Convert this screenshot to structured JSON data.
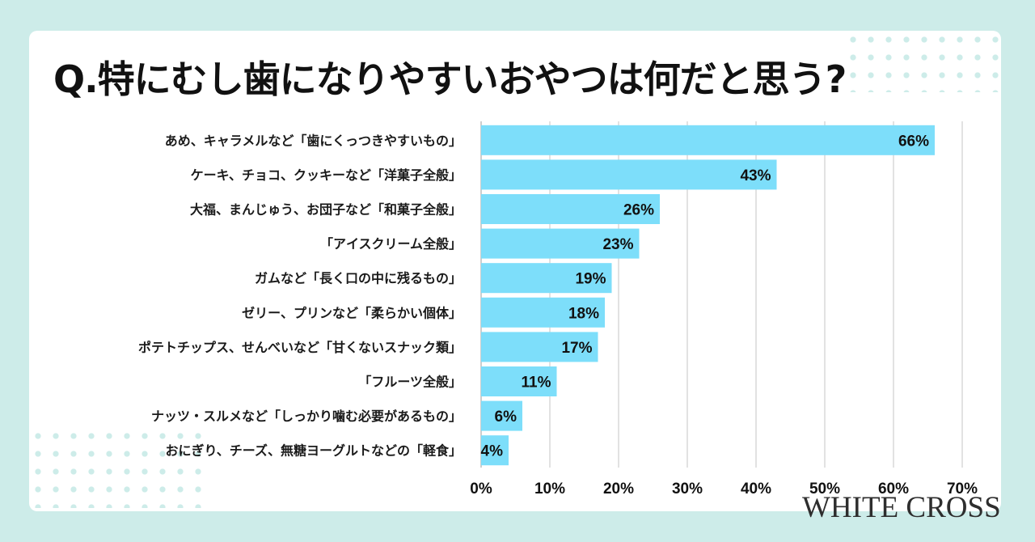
{
  "title": "Q.特にむし歯になりやすいおやつは何だと思う?",
  "brand": "WHITE CROSS",
  "colors": {
    "background": "#cdece9",
    "bar": "#7ddefa",
    "grid": "#d9d9d9",
    "text": "#111111"
  },
  "chart_data": {
    "type": "bar",
    "orientation": "horizontal",
    "title": "Q.特にむし歯になりやすいおやつは何だと思う?",
    "categories": [
      "あめ、キャラメルなど「歯にくっつきやすいもの」",
      "ケーキ、チョコ、クッキーなど「洋菓子全般」",
      "大福、まんじゅう、お団子など「和菓子全般」",
      "「アイスクリーム全般」",
      "ガムなど「長く口の中に残るもの」",
      "ゼリー、プリンなど「柔らかい個体」",
      "ポテトチップス、せんべいなど「甘くないスナック類」",
      "「フルーツ全般」",
      "ナッツ・スルメなど「しっかり噛む必要があるもの」",
      "おにぎり、チーズ、無糖ヨーグルトなどの「軽食」"
    ],
    "values": [
      66,
      43,
      26,
      23,
      19,
      18,
      17,
      11,
      6,
      4
    ],
    "value_labels": [
      "66%",
      "43%",
      "26%",
      "23%",
      "19%",
      "18%",
      "17%",
      "11%",
      "6%",
      "4%"
    ],
    "xlim": [
      0,
      70
    ],
    "xticks": [
      0,
      10,
      20,
      30,
      40,
      50,
      60,
      70
    ],
    "xtick_labels": [
      "0%",
      "10%",
      "20%",
      "30%",
      "40%",
      "50%",
      "60%",
      "70%"
    ],
    "grid": true,
    "legend": "none",
    "xlabel": "",
    "ylabel": ""
  }
}
